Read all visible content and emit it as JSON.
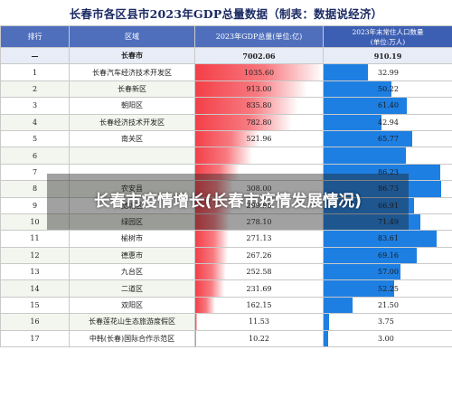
{
  "title": "长春市各区县市2023年GDP总量数据（制表：数据说经济）",
  "headers": {
    "rank": "排行",
    "region": "区域",
    "gdp": "2023年GDP总量(单位:亿)",
    "pop_line1": "2023年末常住人口数量",
    "pop_line2": "(单位:万人)"
  },
  "total": {
    "rank": "—",
    "region": "长春市",
    "gdp": "7002.06",
    "pop": "910.19"
  },
  "rows": [
    {
      "rank": "1",
      "region": "长春汽车经济技术开发区",
      "gdp": "1035.60",
      "pop": "32.99"
    },
    {
      "rank": "2",
      "region": "长春新区",
      "gdp": "913.00",
      "pop": "50.22"
    },
    {
      "rank": "3",
      "region": "朝阳区",
      "gdp": "835.80",
      "pop": "61.40"
    },
    {
      "rank": "4",
      "region": "长春经济技术开发区",
      "gdp": "782.80",
      "pop": "42.94"
    },
    {
      "rank": "5",
      "region": "南关区",
      "gdp": "521.96",
      "pop": "65.77"
    },
    {
      "rank": "6",
      "region": "",
      "gdp": "",
      "pop": ""
    },
    {
      "rank": "7",
      "region": "",
      "gdp": "",
      "pop": "86.23"
    },
    {
      "rank": "8",
      "region": "农安县",
      "gdp": "308.00",
      "pop": "86.73"
    },
    {
      "rank": "9",
      "region": "宽城区",
      "gdp": "299.96",
      "pop": "66.91"
    },
    {
      "rank": "10",
      "region": "绿园区",
      "gdp": "278.10",
      "pop": "71.49"
    },
    {
      "rank": "11",
      "region": "榆树市",
      "gdp": "271.13",
      "pop": "83.61"
    },
    {
      "rank": "12",
      "region": "德惠市",
      "gdp": "267.26",
      "pop": "69.16"
    },
    {
      "rank": "13",
      "region": "九台区",
      "gdp": "252.58",
      "pop": "57.00"
    },
    {
      "rank": "14",
      "region": "二道区",
      "gdp": "231.69",
      "pop": "52.25"
    },
    {
      "rank": "15",
      "region": "双阳区",
      "gdp": "162.15",
      "pop": "21.50"
    },
    {
      "rank": "16",
      "region": "长春莲花山生态旅游度假区",
      "gdp": "11.53",
      "pop": "3.75"
    },
    {
      "rank": "17",
      "region": "中韩(长春)国际合作示范区",
      "gdp": "10.22",
      "pop": "3.00"
    }
  ],
  "bar_values": {
    "gdp": [
      1035.6,
      913.0,
      835.8,
      782.8,
      521.96,
      462.7,
      360.0,
      308.0,
      299.96,
      278.1,
      271.13,
      267.26,
      252.58,
      231.69,
      162.15,
      11.53,
      10.22
    ],
    "pop": [
      32.99,
      50.22,
      61.4,
      42.94,
      65.77,
      60.87,
      86.23,
      86.73,
      66.91,
      71.49,
      83.61,
      69.16,
      57.0,
      52.25,
      21.5,
      3.75,
      3.0
    ]
  },
  "overlay_text": "长春市疫情增长(长春市疫情发展情况)",
  "colors": {
    "header_bg": "#4f6fbd",
    "gdp_bar": "#f43f48",
    "pop_bar": "#1e7fe2"
  }
}
